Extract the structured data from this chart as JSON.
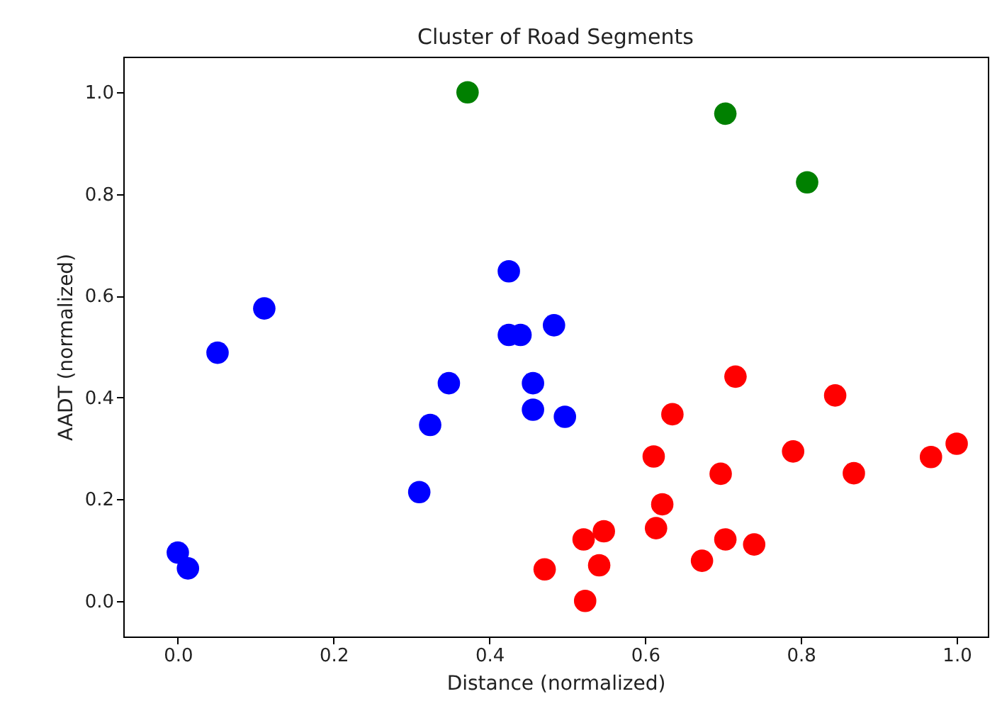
{
  "chart_data": {
    "type": "scatter",
    "title": "Cluster of Road Segments",
    "xlabel": "Distance (normalized)",
    "ylabel": "AADT (normalized)",
    "marker": "circle",
    "xlim": [
      -0.07,
      1.04
    ],
    "ylim": [
      -0.07,
      1.07
    ],
    "xticks": [
      {
        "value": 0,
        "label": "0.0"
      },
      0.2,
      0.4,
      0.6,
      0.8,
      {
        "value": 1,
        "label": "1.0"
      }
    ],
    "yticks": [
      {
        "value": 0,
        "label": "0.0"
      },
      0.2,
      0.4,
      0.6,
      0.8,
      {
        "value": 1,
        "label": "1.0"
      }
    ],
    "series": [
      {
        "color": "#0000ff",
        "x": [
          0.051,
          0.111,
          0.425,
          0.425,
          0.44,
          0.483,
          0.348,
          0.456,
          0.456,
          0.324,
          0.31,
          0.0,
          0.013,
          0.497
        ],
        "values": [
          0.488,
          0.575,
          0.648,
          0.523,
          0.523,
          0.542,
          0.428,
          0.428,
          0.376,
          0.346,
          0.214,
          0.095,
          0.064,
          0.362
        ]
      },
      {
        "color": "#ff0000",
        "x": [
          0.716,
          0.844,
          0.635,
          0.611,
          0.79,
          0.697,
          0.868,
          0.967,
          1.0,
          0.622,
          0.614,
          0.547,
          0.521,
          0.541,
          0.471,
          0.523,
          0.673,
          0.703,
          0.74
        ],
        "values": [
          0.441,
          0.404,
          0.367,
          0.284,
          0.294,
          0.25,
          0.251,
          0.283,
          0.309,
          0.19,
          0.143,
          0.137,
          0.121,
          0.07,
          0.062,
          0.0,
          0.079,
          0.121,
          0.111
        ]
      },
      {
        "color": "#008000",
        "x": [
          0.372,
          0.703,
          0.808
        ],
        "values": [
          1.0,
          0.958,
          0.823
        ]
      }
    ]
  }
}
